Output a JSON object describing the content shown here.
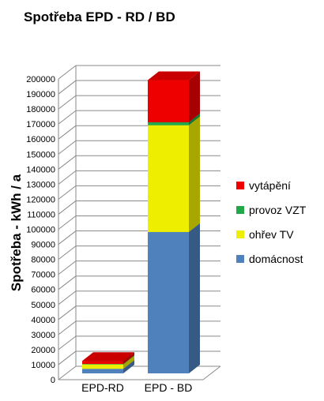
{
  "chart_data": {
    "type": "bar",
    "stacked": true,
    "three_d": true,
    "title": "Spotřeba  EPD - RD / BD",
    "ylabel": "Spotřeba - kWh / a",
    "xlabel": "",
    "categories": [
      "EPD-RD",
      "EPD - BD"
    ],
    "ylim": [
      0,
      200000
    ],
    "ytick_step": 10000,
    "yticks": [
      "0",
      "10000",
      "20000",
      "30000",
      "40000",
      "50000",
      "60000",
      "70000",
      "80000",
      "90000",
      "100000",
      "110000",
      "120000",
      "130000",
      "140000",
      "150000",
      "160000",
      "170000",
      "180000",
      "190000",
      "200000"
    ],
    "series": [
      {
        "name": "domácnost",
        "color": "#4F81BD",
        "values": [
          3000,
          94000
        ]
      },
      {
        "name": "ohřev TV",
        "color": "#EEEE00",
        "values": [
          3000,
          71000
        ]
      },
      {
        "name": "provoz VZT",
        "color": "#22A84A",
        "values": [
          300,
          2000
        ]
      },
      {
        "name": "vytápění",
        "color": "#EE0000",
        "values": [
          2000,
          28000
        ]
      }
    ],
    "legend": {
      "position": "right",
      "order": [
        "vytápění",
        "provoz VZT",
        "ohřev TV",
        "domácnost"
      ]
    },
    "grid": true
  }
}
